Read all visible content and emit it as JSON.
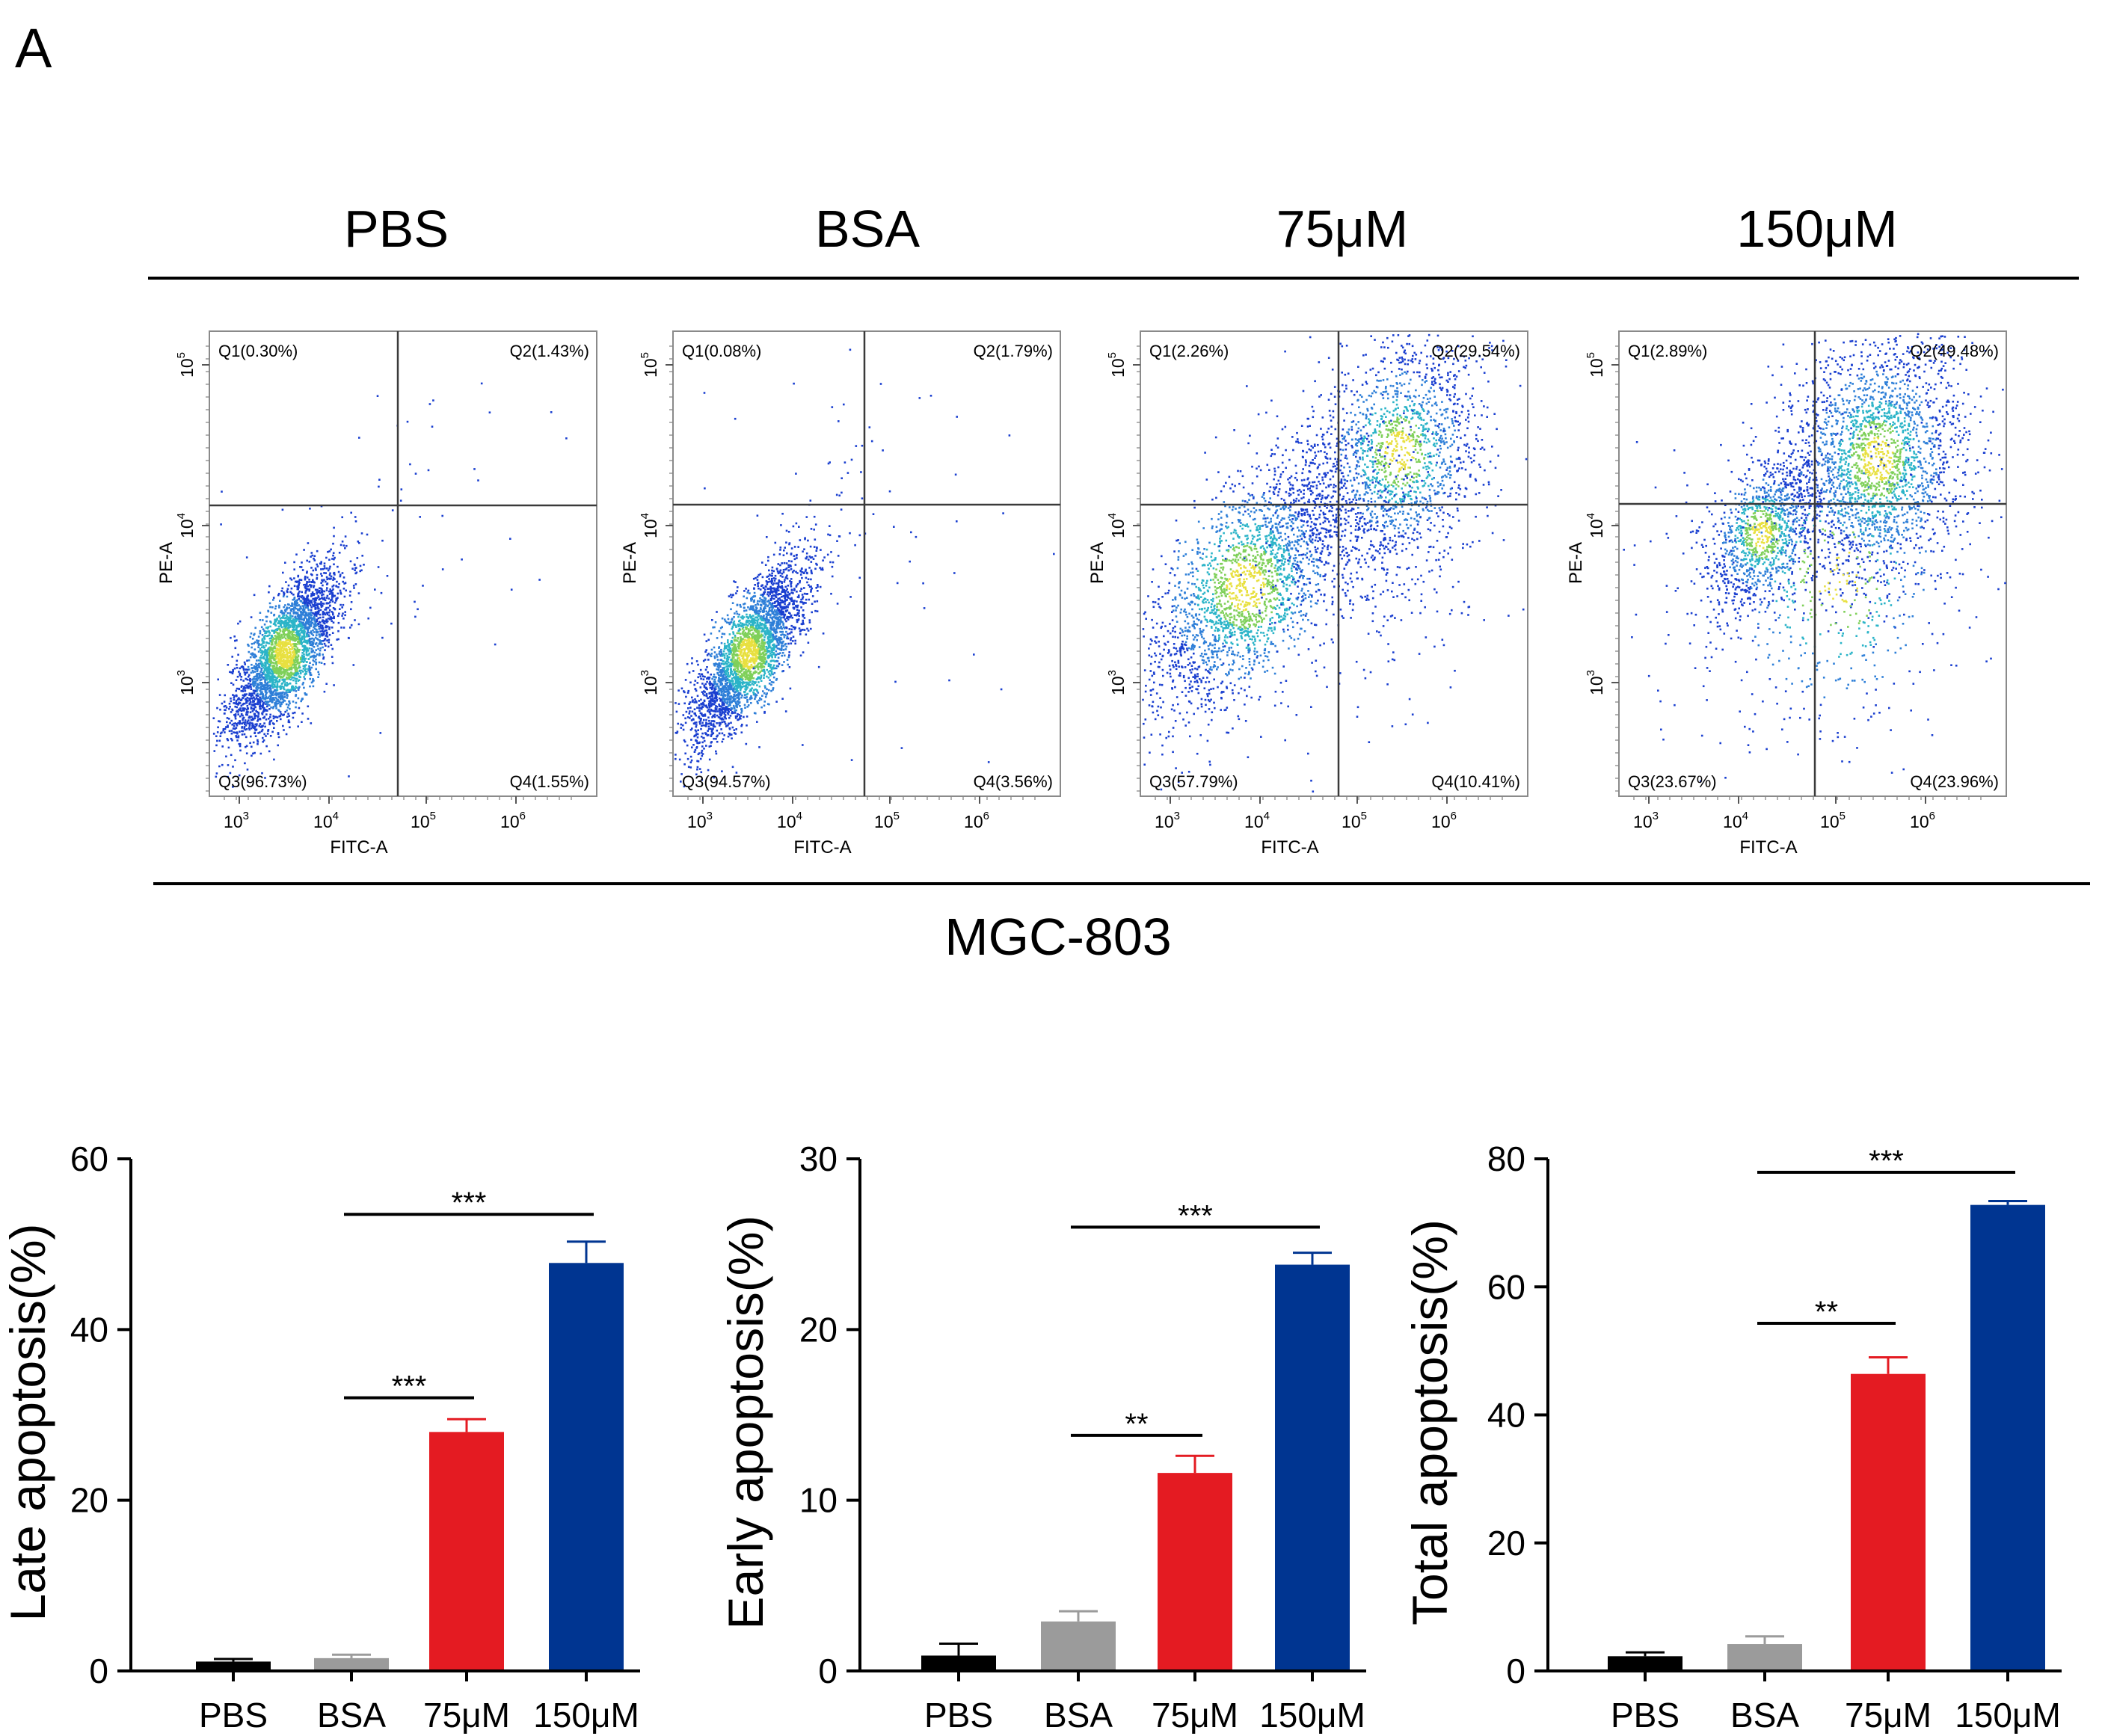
{
  "panel_label": "A",
  "flow": {
    "groups": [
      "PBS",
      "BSA",
      "75μM",
      "150μM"
    ],
    "cell_line": "MGC-803",
    "xlabel": "FITC-A",
    "ylabel": "PE-A",
    "x_ticks": [
      "10^3",
      "10^4",
      "10^5",
      "10^6"
    ],
    "y_ticks": [
      "10^3",
      "10^4",
      "10^5"
    ],
    "colors": [
      "#1a3fd0",
      "#2e7fd8",
      "#2bb4c8",
      "#7fd05a",
      "#e8e040"
    ],
    "plots": [
      {
        "group": "PBS",
        "q1": "Q1(0.30%)",
        "q2": "Q2(1.43%)",
        "q3": "Q3(96.73%)",
        "q4": "Q4(1.55%)"
      },
      {
        "group": "BSA",
        "q1": "Q1(0.08%)",
        "q2": "Q2(1.79%)",
        "q3": "Q3(94.57%)",
        "q4": "Q4(3.56%)"
      },
      {
        "group": "75μM",
        "q1": "Q1(2.26%)",
        "q2": "Q2(29.54%)",
        "q3": "Q3(57.79%)",
        "q4": "Q4(10.41%)"
      },
      {
        "group": "150μM",
        "q1": "Q1(2.89%)",
        "q2": "Q2(49.48%)",
        "q3": "Q3(23.67%)",
        "q4": "Q4(23.96%)"
      }
    ]
  },
  "chart_data": [
    {
      "type": "bar",
      "categories": [
        "PBS",
        "BSA",
        "75μM",
        "150μM"
      ],
      "values": [
        1.1,
        1.5,
        28.0,
        47.8
      ],
      "errors": [
        0.3,
        0.4,
        1.5,
        2.5
      ],
      "colors": [
        "#000000",
        "#9b9b9b",
        "#e41b22",
        "#003591"
      ],
      "ylabel": "Late apoptosis(%)",
      "ylim": [
        0,
        60
      ],
      "yticks": [
        0,
        20,
        40,
        60
      ],
      "significance": [
        {
          "from": 1,
          "to": 2,
          "label": "***",
          "y": 32
        },
        {
          "from": 1,
          "to": 3,
          "label": "***",
          "y": 53.5
        }
      ]
    },
    {
      "type": "bar",
      "categories": [
        "PBS",
        "BSA",
        "75μM",
        "150μM"
      ],
      "values": [
        0.9,
        2.9,
        11.6,
        23.8
      ],
      "errors": [
        0.7,
        0.6,
        1.0,
        0.7
      ],
      "colors": [
        "#000000",
        "#9b9b9b",
        "#e41b22",
        "#003591"
      ],
      "ylabel": "Early apoptosis(%)",
      "ylim": [
        0,
        30
      ],
      "yticks": [
        0,
        10,
        20,
        30
      ],
      "significance": [
        {
          "from": 1,
          "to": 2,
          "label": "**",
          "y": 13.8
        },
        {
          "from": 1,
          "to": 3,
          "label": "***",
          "y": 26.0
        }
      ]
    },
    {
      "type": "bar",
      "categories": [
        "PBS",
        "BSA",
        "75μM",
        "150μM"
      ],
      "values": [
        2.3,
        4.2,
        46.4,
        72.8
      ],
      "errors": [
        0.6,
        1.2,
        2.6,
        0.6
      ],
      "colors": [
        "#000000",
        "#9b9b9b",
        "#e41b22",
        "#003591"
      ],
      "ylabel": "Total apoptosis(%)",
      "ylim": [
        0,
        80
      ],
      "yticks": [
        0,
        20,
        40,
        60,
        80
      ],
      "significance": [
        {
          "from": 1,
          "to": 2,
          "label": "**",
          "y": 54.3
        },
        {
          "from": 1,
          "to": 3,
          "label": "***",
          "y": 77.9
        }
      ]
    }
  ]
}
